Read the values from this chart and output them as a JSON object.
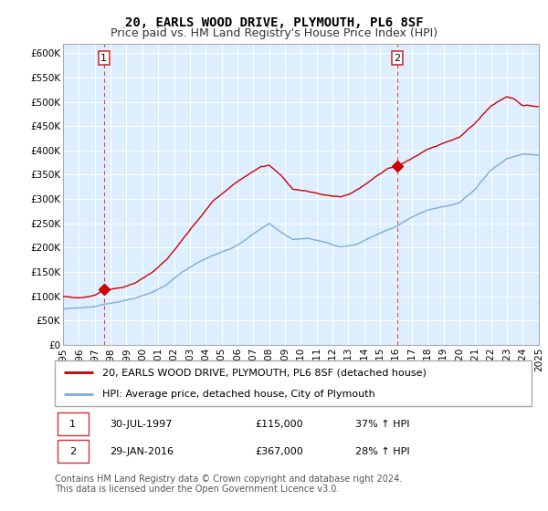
{
  "title": "20, EARLS WOOD DRIVE, PLYMOUTH, PL6 8SF",
  "subtitle": "Price paid vs. HM Land Registry's House Price Index (HPI)",
  "ylim": [
    0,
    620000
  ],
  "yticks": [
    0,
    50000,
    100000,
    150000,
    200000,
    250000,
    300000,
    350000,
    400000,
    450000,
    500000,
    550000,
    600000
  ],
  "ytick_labels": [
    "£0",
    "£50K",
    "£100K",
    "£150K",
    "£200K",
    "£250K",
    "£300K",
    "£350K",
    "£400K",
    "£450K",
    "£500K",
    "£550K",
    "£600K"
  ],
  "chart_bg_color": "#ddeeff",
  "background_color": "#ffffff",
  "grid_color": "#ffffff",
  "purchase1_date": 1997.58,
  "purchase1_price": 115000,
  "purchase1_label": "1",
  "purchase2_date": 2016.08,
  "purchase2_price": 367000,
  "purchase2_label": "2",
  "hpi_line_color": "#7aaddb",
  "price_line_color": "#cc0000",
  "vline_color": "#dd4444",
  "legend_label_price": "20, EARLS WOOD DRIVE, PLYMOUTH, PL6 8SF (detached house)",
  "legend_label_hpi": "HPI: Average price, detached house, City of Plymouth",
  "table_entries": [
    {
      "num": "1",
      "date": "30-JUL-1997",
      "price": "£115,000",
      "hpi": "37% ↑ HPI"
    },
    {
      "num": "2",
      "date": "29-JAN-2016",
      "price": "£367,000",
      "hpi": "28% ↑ HPI"
    }
  ],
  "footer": "Contains HM Land Registry data © Crown copyright and database right 2024.\nThis data is licensed under the Open Government Licence v3.0.",
  "title_fontsize": 10,
  "subtitle_fontsize": 9,
  "tick_fontsize": 7.5,
  "legend_fontsize": 8,
  "table_fontsize": 8,
  "footer_fontsize": 7
}
